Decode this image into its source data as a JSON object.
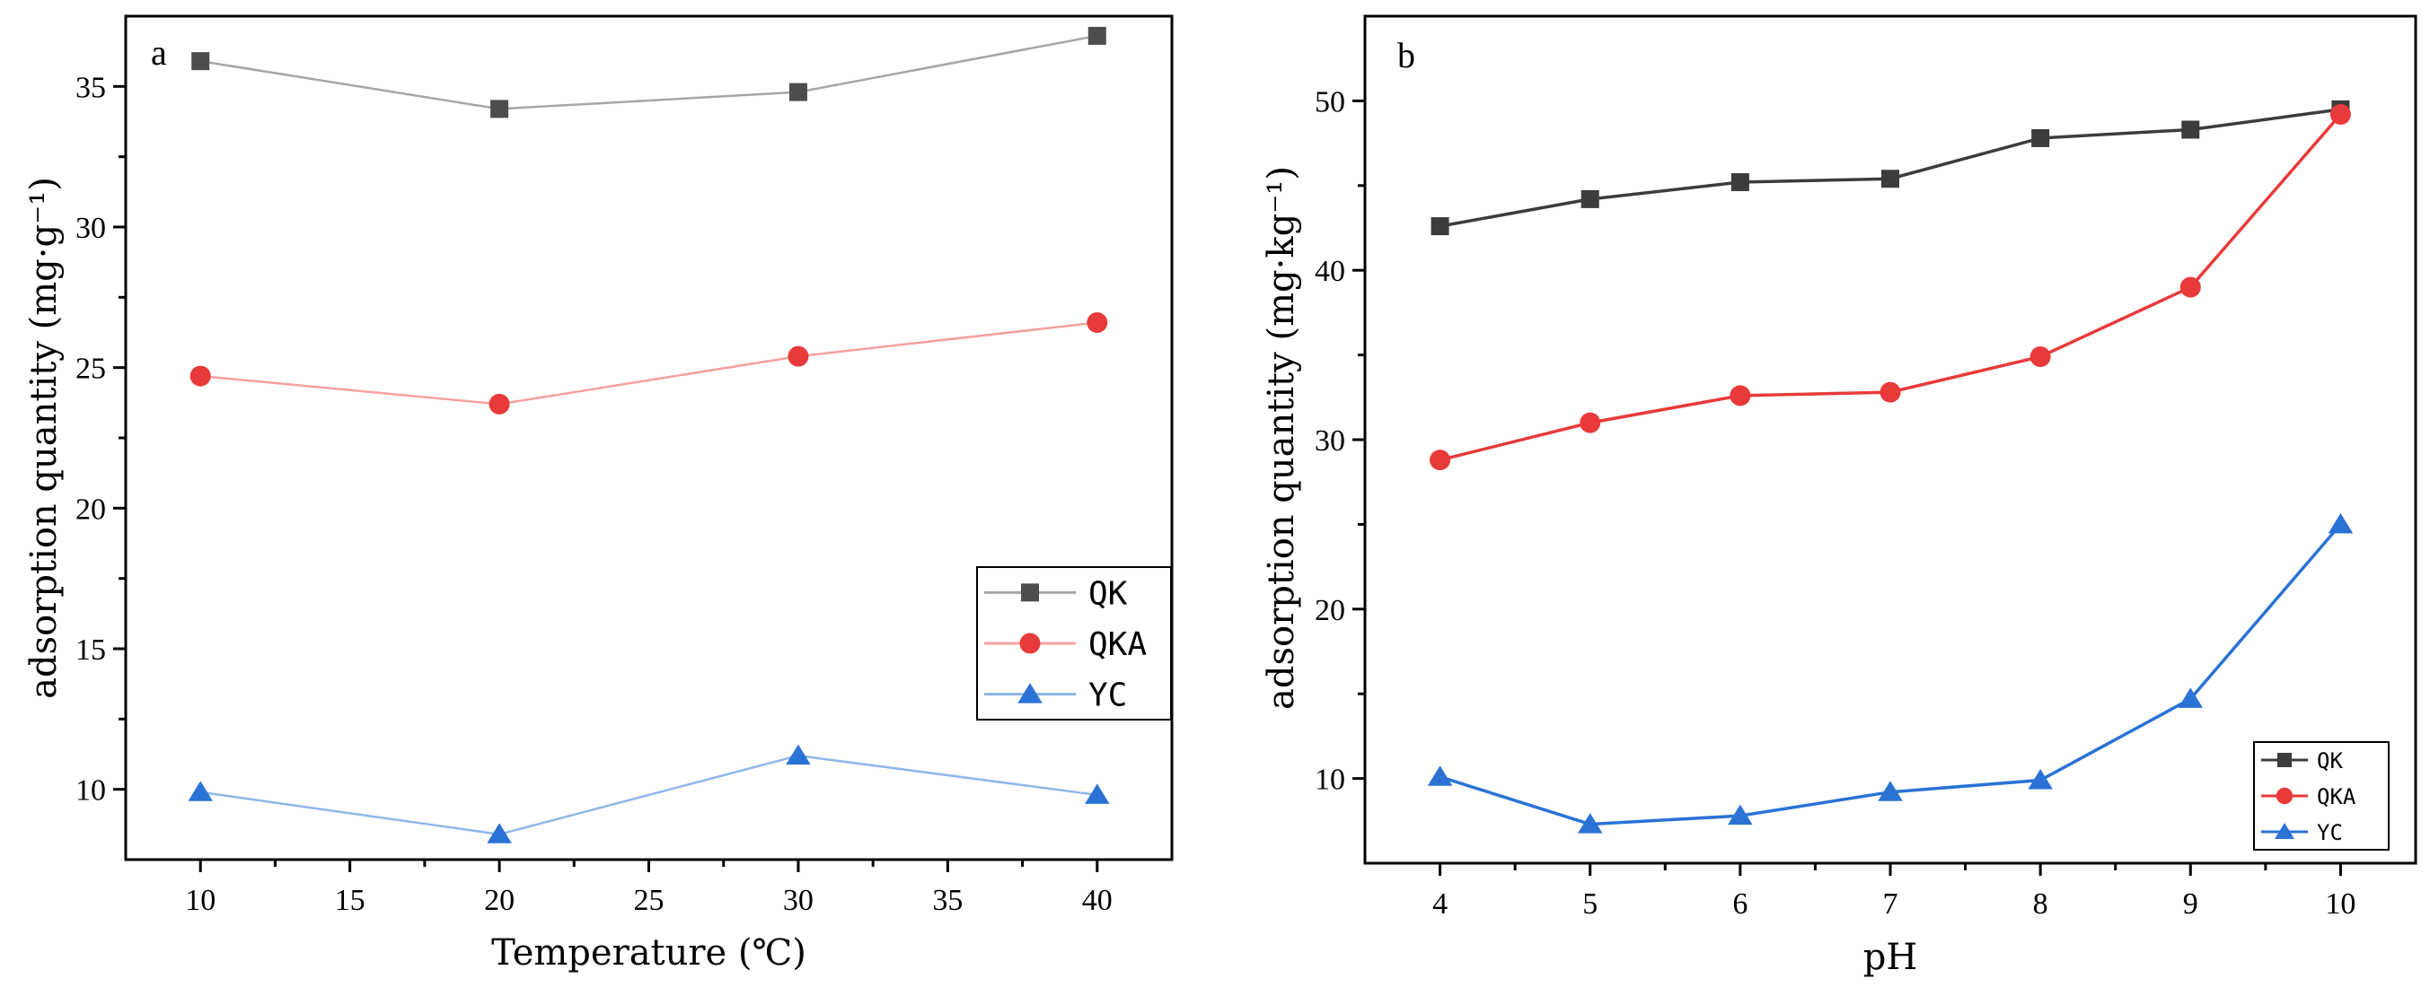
{
  "chart_data": [
    {
      "panel": "a",
      "type": "line",
      "xlabel": "Temperature (℃)",
      "ylabel": "adsorption quantity (mg·g⁻¹)",
      "xticks": [
        "10",
        "15",
        "20",
        "25",
        "30",
        "35",
        "40"
      ],
      "yticks": [
        "10",
        "15",
        "20",
        "25",
        "30",
        "35"
      ],
      "xlim": [
        7.5,
        42.5
      ],
      "ylim": [
        7.5,
        37.5
      ],
      "x": [
        10,
        20,
        30,
        40
      ],
      "legend_position": "lower-right",
      "series": [
        {
          "name": "QK",
          "marker": "square",
          "color": "#4d4d4d",
          "line_color": "#a6a6a6",
          "values": [
            35.9,
            34.2,
            34.8,
            36.8
          ]
        },
        {
          "name": "QKA",
          "marker": "circle",
          "color": "#e83a3a",
          "line_color": "#f4a0a0",
          "values": [
            24.7,
            23.7,
            25.4,
            26.6
          ]
        },
        {
          "name": "YC",
          "marker": "triangle",
          "color": "#2a72d6",
          "line_color": "#8fb6ea",
          "values": [
            9.9,
            8.4,
            11.2,
            9.8
          ]
        }
      ]
    },
    {
      "panel": "b",
      "type": "line",
      "xlabel": "pH",
      "ylabel": "adsorption quantity  (mg·kg⁻¹)",
      "xticks": [
        "4",
        "5",
        "6",
        "7",
        "8",
        "9",
        "10"
      ],
      "yticks": [
        "10",
        "20",
        "30",
        "40",
        "50"
      ],
      "xlim": [
        3.5,
        10.5
      ],
      "ylim": [
        5,
        55
      ],
      "x": [
        4,
        5,
        6,
        7,
        8,
        9,
        10
      ],
      "legend_position": "lower-right",
      "series": [
        {
          "name": "QK",
          "marker": "square",
          "color": "#3c3c3c",
          "line_color": "#3c3c3c",
          "values": [
            42.6,
            44.2,
            45.2,
            45.4,
            47.8,
            48.3,
            49.5
          ]
        },
        {
          "name": "QKA",
          "marker": "circle",
          "color": "#e83a3a",
          "line_color": "#e83a3a",
          "values": [
            28.8,
            31.0,
            32.6,
            32.8,
            34.9,
            39.0,
            49.2
          ]
        },
        {
          "name": "YC",
          "marker": "triangle",
          "color": "#2a72d6",
          "line_color": "#2a72d6",
          "values": [
            10.1,
            7.3,
            7.8,
            9.2,
            9.9,
            14.7,
            25.0
          ]
        }
      ]
    }
  ]
}
